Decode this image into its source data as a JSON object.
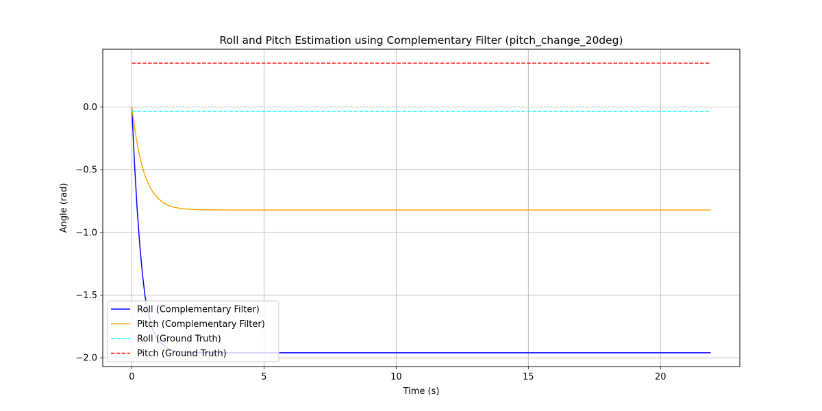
{
  "chart_data": {
    "type": "line",
    "title": "Roll and Pitch Estimation using Complementary Filter (pitch_change_20deg)",
    "xlabel": "Time (s)",
    "ylabel": "Angle (rad)",
    "xlim": [
      -1.1,
      23.0
    ],
    "ylim": [
      -2.07,
      0.46
    ],
    "xticks": [
      0,
      5,
      10,
      15,
      20
    ],
    "xtick_labels": [
      "0",
      "5",
      "10",
      "15",
      "20"
    ],
    "yticks": [
      0.0,
      -0.5,
      -1.0,
      -1.5,
      -2.0
    ],
    "ytick_labels": [
      "0.0",
      "−0.5",
      "−1.0",
      "−1.5",
      "−2.0"
    ],
    "grid": true,
    "legend_position": "lower-left",
    "series": [
      {
        "name": "Roll (Complementary Filter)",
        "color": "#0000ff",
        "style": "solid",
        "x": [
          0,
          0.1,
          0.2,
          0.3,
          0.4,
          0.5,
          0.6,
          0.7,
          0.8,
          1.0,
          1.2,
          1.4,
          1.6,
          1.8,
          2.0,
          2.5,
          3.0,
          4.0,
          6.0,
          10.0,
          15.0,
          21.9
        ],
        "y": [
          0.0,
          -0.45,
          -0.81,
          -1.1,
          -1.33,
          -1.51,
          -1.62,
          -1.71,
          -1.78,
          -1.86,
          -1.9,
          -1.93,
          -1.945,
          -1.952,
          -1.956,
          -1.959,
          -1.96,
          -1.96,
          -1.96,
          -1.96,
          -1.96,
          -1.96
        ]
      },
      {
        "name": "Pitch (Complementary Filter)",
        "color": "#ffa500",
        "style": "solid",
        "x": [
          0,
          0.1,
          0.2,
          0.3,
          0.4,
          0.5,
          0.6,
          0.7,
          0.8,
          1.0,
          1.2,
          1.4,
          1.6,
          1.8,
          2.0,
          2.5,
          3.0,
          4.0,
          6.0,
          10.0,
          15.0,
          21.9
        ],
        "y": [
          0.0,
          -0.16,
          -0.29,
          -0.395,
          -0.48,
          -0.55,
          -0.6,
          -0.645,
          -0.68,
          -0.73,
          -0.765,
          -0.787,
          -0.8,
          -0.808,
          -0.813,
          -0.819,
          -0.821,
          -0.822,
          -0.822,
          -0.822,
          -0.822,
          -0.822
        ]
      },
      {
        "name": "Roll (Ground Truth)",
        "color": "#00ffff",
        "style": "dashed",
        "x": [
          0,
          21.9
        ],
        "y": [
          -0.035,
          -0.035
        ]
      },
      {
        "name": "Pitch (Ground Truth)",
        "color": "#ff0000",
        "style": "dashed",
        "x": [
          0,
          21.9
        ],
        "y": [
          0.349,
          0.349
        ]
      }
    ]
  }
}
